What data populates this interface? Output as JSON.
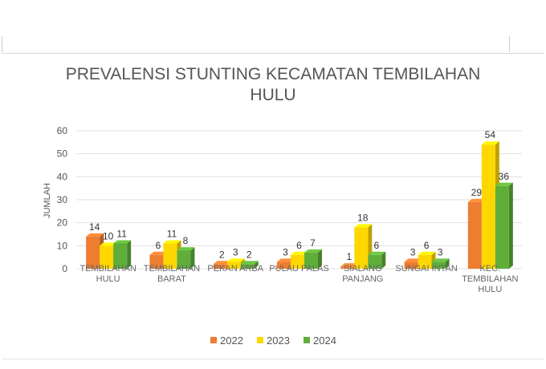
{
  "chart_data": {
    "type": "bar",
    "title": "PREVALENSI STUNTING KECAMATAN TEMBILAHAN HULU",
    "ylabel": "JUMLAH",
    "xlabel": "",
    "ylim": [
      0,
      60
    ],
    "yticks": [
      0,
      10,
      20,
      30,
      40,
      50,
      60
    ],
    "grid": true,
    "legend": "bottom",
    "categories": [
      [
        "TEMBILAHAN",
        "HULU"
      ],
      [
        "TEMBILAHAN",
        "BARAT"
      ],
      [
        "PEKAN ARBA"
      ],
      [
        "PULAU PALAS"
      ],
      [
        "SIALANG",
        "PANJANG"
      ],
      [
        "SUNGAI INTAN"
      ],
      [
        "KEC.",
        "TEMBILAHAN",
        "HULU"
      ]
    ],
    "series": [
      {
        "name": "2022",
        "color": "#ED7D31",
        "values": [
          14,
          6,
          2,
          3,
          1,
          3,
          29
        ]
      },
      {
        "name": "2023",
        "color": "#FFD700",
        "values": [
          10,
          11,
          3,
          6,
          18,
          6,
          54
        ]
      },
      {
        "name": "2024",
        "color": "#5FAE3A",
        "values": [
          11,
          8,
          2,
          7,
          6,
          3,
          36
        ]
      }
    ]
  }
}
